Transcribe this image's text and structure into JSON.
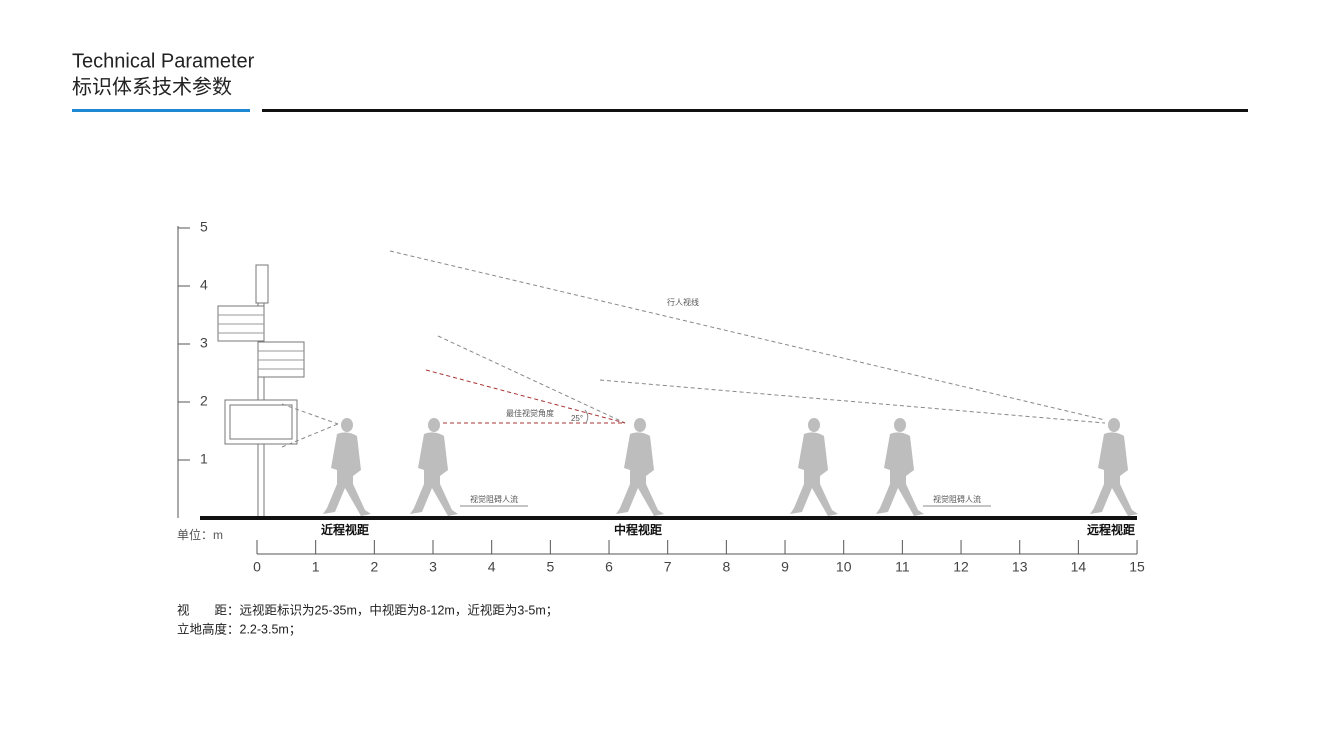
{
  "header": {
    "title": "Technical Parameter",
    "subtitle": "标识体系技术参数"
  },
  "diagram": {
    "y_axis": {
      "ticks": [
        1,
        2,
        3,
        4,
        5
      ]
    },
    "x_axis": {
      "ticks": [
        0,
        1,
        2,
        3,
        4,
        5,
        6,
        7,
        8,
        9,
        10,
        11,
        12,
        13,
        14,
        15
      ]
    },
    "unit": "单位：m",
    "zones": [
      "近程视距",
      "中程视距",
      "远程视距"
    ],
    "sight_line": "行人视线",
    "best_angle": "最佳视觉角度",
    "angle": "25°",
    "obstruction": [
      "视觉阻碍人流",
      "视觉阻碍人流"
    ]
  },
  "notes": [
    "视　　距：远视距标识为25-35m，中视距为8-12m，近视距为3-5m；",
    "立地高度：2.2-3.5m；"
  ]
}
